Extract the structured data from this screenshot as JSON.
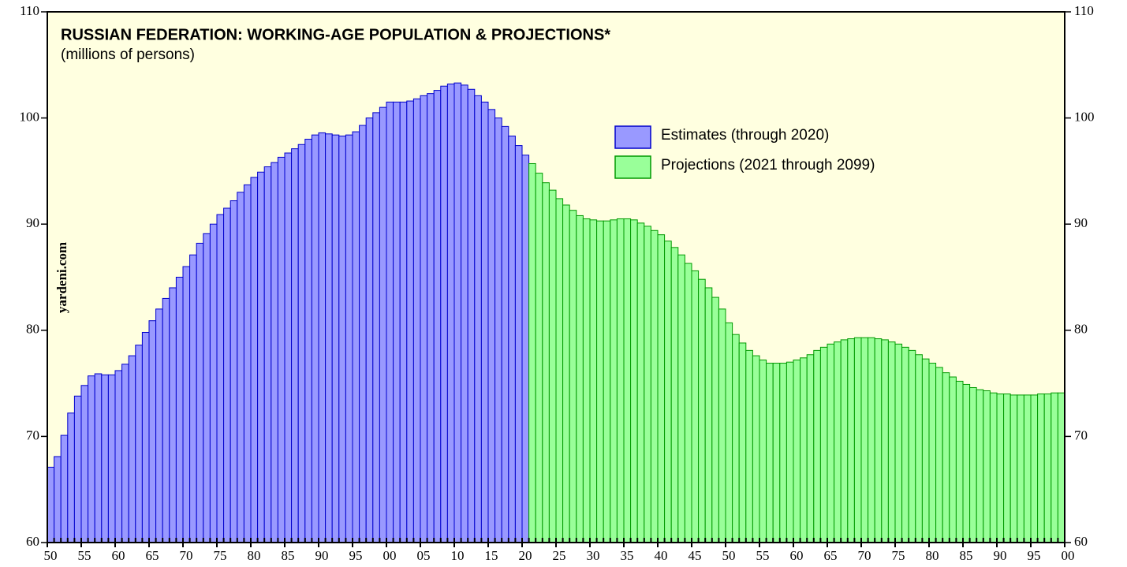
{
  "chart_data": {
    "type": "bar",
    "title": "RUSSIAN FEDERATION: WORKING-AGE POPULATION & PROJECTIONS*",
    "subtitle": "(millions of persons)",
    "watermark": "yardeni.com",
    "legend": "upper right",
    "xlim": [
      1950,
      2100
    ],
    "xticks": [
      {
        "value": 1950,
        "label": "50"
      },
      {
        "value": 1955,
        "label": "55"
      },
      {
        "value": 1960,
        "label": "60"
      },
      {
        "value": 1965,
        "label": "65"
      },
      {
        "value": 1970,
        "label": "70"
      },
      {
        "value": 1975,
        "label": "75"
      },
      {
        "value": 1980,
        "label": "80"
      },
      {
        "value": 1985,
        "label": "85"
      },
      {
        "value": 1990,
        "label": "90"
      },
      {
        "value": 1995,
        "label": "95"
      },
      {
        "value": 2000,
        "label": "00"
      },
      {
        "value": 2005,
        "label": "05"
      },
      {
        "value": 2010,
        "label": "10"
      },
      {
        "value": 2015,
        "label": "15"
      },
      {
        "value": 2020,
        "label": "20"
      },
      {
        "value": 2025,
        "label": "25"
      },
      {
        "value": 2030,
        "label": "30"
      },
      {
        "value": 2035,
        "label": "35"
      },
      {
        "value": 2040,
        "label": "40"
      },
      {
        "value": 2045,
        "label": "45"
      },
      {
        "value": 2050,
        "label": "50"
      },
      {
        "value": 2055,
        "label": "55"
      },
      {
        "value": 2060,
        "label": "60"
      },
      {
        "value": 2065,
        "label": "65"
      },
      {
        "value": 2070,
        "label": "70"
      },
      {
        "value": 2075,
        "label": "75"
      },
      {
        "value": 2080,
        "label": "80"
      },
      {
        "value": 2085,
        "label": "85"
      },
      {
        "value": 2090,
        "label": "90"
      },
      {
        "value": 2095,
        "label": "95"
      },
      {
        "value": 2100,
        "label": "00"
      }
    ],
    "ylim": [
      60,
      110
    ],
    "yticks": [
      60,
      70,
      80,
      90,
      100,
      110
    ],
    "series": [
      {
        "name": "Estimates (through 2020)",
        "color": "#9999ff",
        "edge": "#0000cc",
        "x": [
          1950,
          1951,
          1952,
          1953,
          1954,
          1955,
          1956,
          1957,
          1958,
          1959,
          1960,
          1961,
          1962,
          1963,
          1964,
          1965,
          1966,
          1967,
          1968,
          1969,
          1970,
          1971,
          1972,
          1973,
          1974,
          1975,
          1976,
          1977,
          1978,
          1979,
          1980,
          1981,
          1982,
          1983,
          1984,
          1985,
          1986,
          1987,
          1988,
          1989,
          1990,
          1991,
          1992,
          1993,
          1994,
          1995,
          1996,
          1997,
          1998,
          1999,
          2000,
          2001,
          2002,
          2003,
          2004,
          2005,
          2006,
          2007,
          2008,
          2009,
          2010,
          2011,
          2012,
          2013,
          2014,
          2015,
          2016,
          2017,
          2018,
          2019,
          2020
        ],
        "values": [
          67.1,
          68.1,
          70.1,
          72.2,
          73.8,
          74.8,
          75.7,
          75.9,
          75.8,
          75.8,
          76.2,
          76.8,
          77.6,
          78.6,
          79.8,
          80.9,
          82.0,
          83.0,
          84.0,
          85.0,
          86.0,
          87.1,
          88.2,
          89.1,
          90.0,
          90.9,
          91.5,
          92.2,
          93.0,
          93.7,
          94.4,
          94.9,
          95.4,
          95.8,
          96.3,
          96.7,
          97.1,
          97.5,
          98.0,
          98.4,
          98.6,
          98.5,
          98.4,
          98.3,
          98.4,
          98.7,
          99.3,
          100.0,
          100.5,
          101.0,
          101.5,
          101.5,
          101.5,
          101.6,
          101.8,
          102.1,
          102.3,
          102.6,
          103.0,
          103.2,
          103.3,
          103.1,
          102.7,
          102.1,
          101.5,
          100.8,
          100.0,
          99.2,
          98.3,
          97.4,
          96.5
        ]
      },
      {
        "name": "Projections (2021 through 2099)",
        "color": "#99ff99",
        "edge": "#009900",
        "x": [
          2021,
          2022,
          2023,
          2024,
          2025,
          2026,
          2027,
          2028,
          2029,
          2030,
          2031,
          2032,
          2033,
          2034,
          2035,
          2036,
          2037,
          2038,
          2039,
          2040,
          2041,
          2042,
          2043,
          2044,
          2045,
          2046,
          2047,
          2048,
          2049,
          2050,
          2051,
          2052,
          2053,
          2054,
          2055,
          2056,
          2057,
          2058,
          2059,
          2060,
          2061,
          2062,
          2063,
          2064,
          2065,
          2066,
          2067,
          2068,
          2069,
          2070,
          2071,
          2072,
          2073,
          2074,
          2075,
          2076,
          2077,
          2078,
          2079,
          2080,
          2081,
          2082,
          2083,
          2084,
          2085,
          2086,
          2087,
          2088,
          2089,
          2090,
          2091,
          2092,
          2093,
          2094,
          2095,
          2096,
          2097,
          2098,
          2099
        ],
        "values": [
          95.7,
          94.8,
          93.9,
          93.2,
          92.4,
          91.8,
          91.3,
          90.8,
          90.5,
          90.4,
          90.3,
          90.3,
          90.4,
          90.5,
          90.5,
          90.4,
          90.1,
          89.8,
          89.4,
          89.0,
          88.4,
          87.8,
          87.1,
          86.3,
          85.6,
          84.8,
          84.0,
          83.1,
          82.0,
          80.7,
          79.6,
          78.8,
          78.1,
          77.6,
          77.2,
          76.9,
          76.9,
          76.9,
          77.0,
          77.2,
          77.4,
          77.7,
          78.1,
          78.4,
          78.7,
          78.9,
          79.1,
          79.2,
          79.3,
          79.3,
          79.3,
          79.2,
          79.1,
          78.9,
          78.7,
          78.4,
          78.1,
          77.7,
          77.3,
          76.9,
          76.5,
          76.0,
          75.6,
          75.2,
          74.9,
          74.6,
          74.4,
          74.3,
          74.1,
          74.0,
          74.0,
          73.9,
          73.9,
          73.9,
          73.9,
          74.0,
          74.0,
          74.1,
          74.1
        ]
      }
    ]
  }
}
